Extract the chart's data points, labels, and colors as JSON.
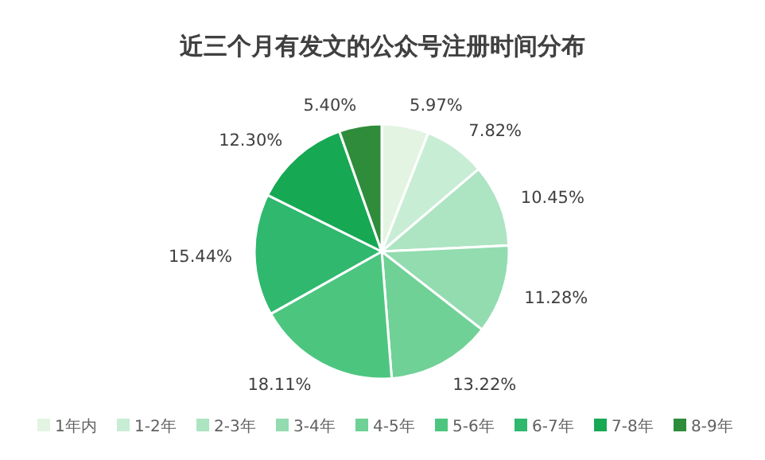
{
  "chart_data": {
    "type": "pie",
    "title": "近三个月有发文的公众号注册时间分布",
    "categories": [
      "1年内",
      "1-2年",
      "2-3年",
      "3-4年",
      "4-5年",
      "5-6年",
      "6-7年",
      "7-8年",
      "8-9年"
    ],
    "values": [
      5.97,
      7.82,
      10.45,
      11.28,
      13.22,
      18.11,
      15.44,
      12.3,
      5.4
    ],
    "value_labels": [
      "5.97%",
      "7.82%",
      "10.45%",
      "11.28%",
      "13.22%",
      "18.11%",
      "15.44%",
      "12.30%",
      "5.40%"
    ],
    "colors": [
      "#e3f4e3",
      "#c8edd5",
      "#ade4c2",
      "#92dcb0",
      "#6fd196",
      "#4cc67f",
      "#2fb86e",
      "#17a853",
      "#2f8c3b"
    ],
    "legend": "bottom"
  }
}
